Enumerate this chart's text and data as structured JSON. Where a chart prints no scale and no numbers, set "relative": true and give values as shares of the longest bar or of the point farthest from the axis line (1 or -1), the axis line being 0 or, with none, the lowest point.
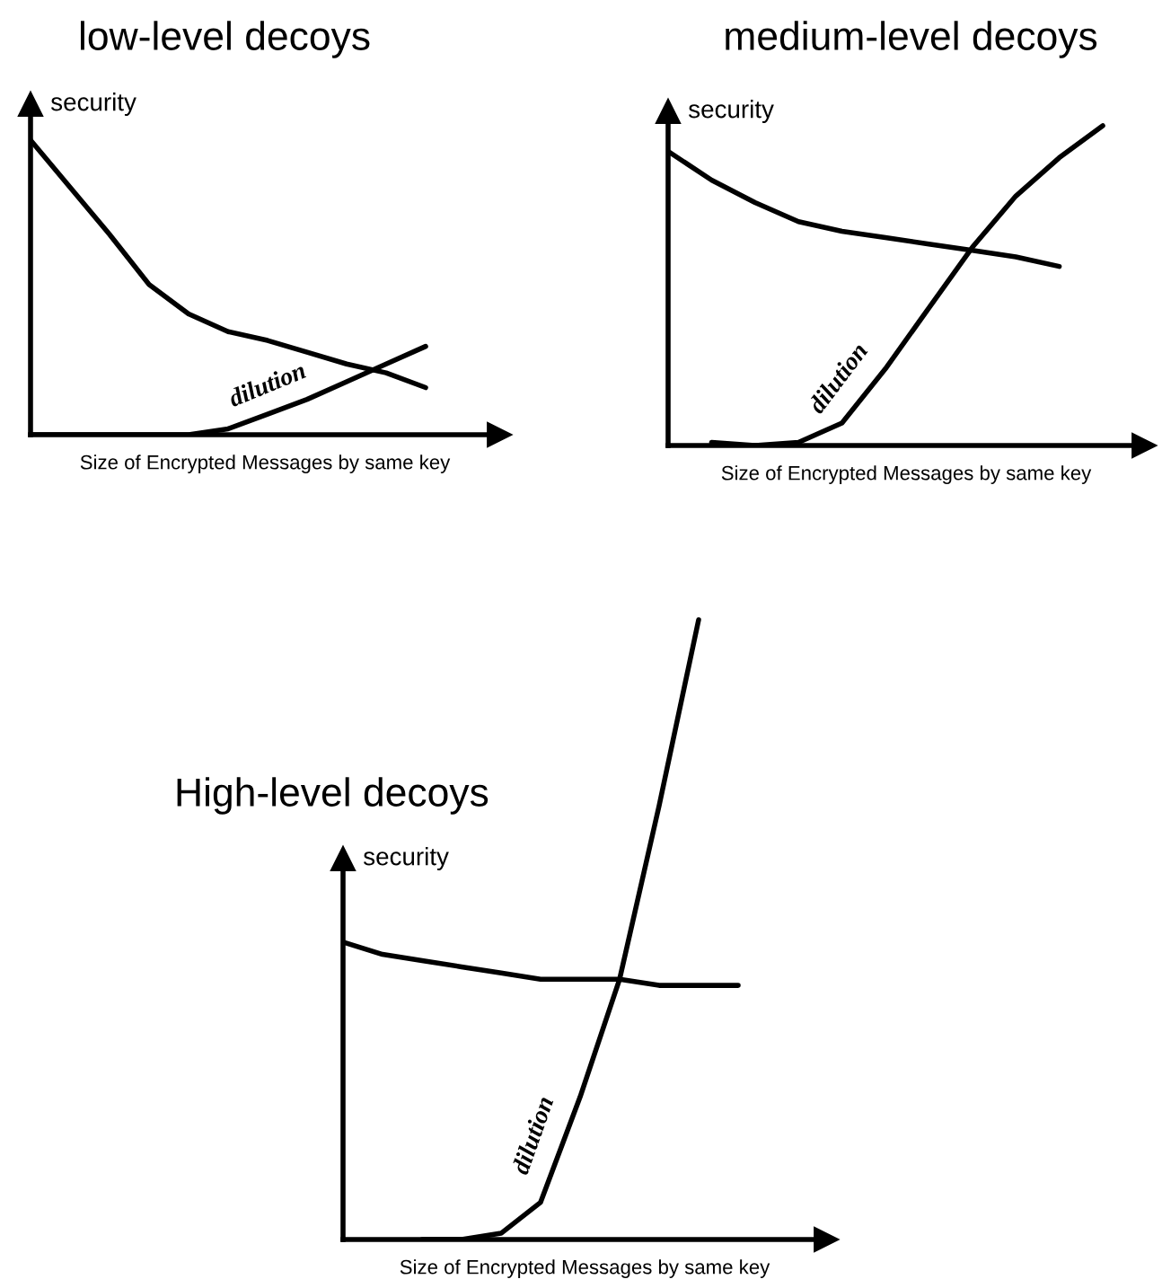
{
  "chart_data": [
    {
      "type": "line",
      "title": "low-level decoys",
      "xlabel": "Size of Encrypted Messages by same key",
      "ylabel": "security",
      "relative": true,
      "tick_labels": false,
      "categories": [
        null,
        null,
        null,
        null,
        null,
        null,
        null,
        null,
        null,
        null,
        null
      ],
      "series": [
        {
          "color": "#000000",
          "values": [
            1.0,
            0.84,
            0.68,
            0.51,
            0.41,
            0.35,
            0.32,
            0.28,
            0.24,
            0.21,
            0.16
          ]
        },
        {
          "name": "dilution",
          "color": "#000000",
          "values": [
            0.0,
            0.0,
            0.0,
            0.0,
            0.0,
            0.02,
            0.07,
            0.12,
            0.18,
            0.24,
            0.3
          ]
        }
      ]
    },
    {
      "type": "line",
      "title": "medium-level decoys",
      "xlabel": "Size of Encrypted Messages by same key",
      "ylabel": "security",
      "relative": true,
      "tick_labels": false,
      "categories": [
        null,
        null,
        null,
        null,
        null,
        null,
        null,
        null,
        null,
        null,
        null
      ],
      "series": [
        {
          "color": "#000000",
          "values": [
            0.92,
            0.83,
            0.76,
            0.7,
            0.67,
            0.65,
            0.63,
            0.61,
            0.59,
            0.56,
            null
          ]
        },
        {
          "name": "dilution",
          "color": "#000000",
          "values": [
            null,
            0.01,
            0.0,
            0.01,
            0.07,
            0.24,
            0.43,
            0.62,
            0.78,
            0.9,
            1.0
          ]
        }
      ]
    },
    {
      "type": "line",
      "title": "High-level decoys",
      "xlabel": "Size of Encrypted Messages by same key",
      "ylabel": "security",
      "relative": true,
      "tick_labels": false,
      "categories": [
        null,
        null,
        null,
        null,
        null,
        null,
        null,
        null,
        null,
        null,
        null
      ],
      "series": [
        {
          "color": "#000000",
          "values": [
            0.48,
            0.46,
            0.45,
            0.44,
            0.43,
            0.42,
            0.42,
            0.42,
            0.41,
            0.41,
            0.41
          ]
        },
        {
          "name": "dilution",
          "color": "#000000",
          "values": [
            null,
            null,
            0.0,
            0.0,
            0.01,
            0.06,
            0.23,
            0.42,
            0.7,
            1.0,
            null
          ]
        }
      ]
    }
  ]
}
